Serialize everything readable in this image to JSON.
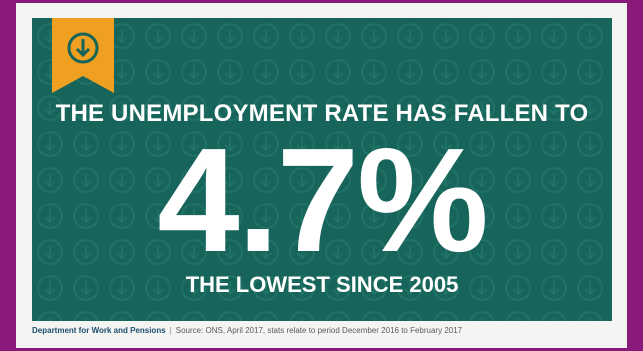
{
  "colors": {
    "background": "#8a1a7a",
    "card": "#17645a",
    "ribbon": "#f0a020",
    "text": "#ffffff",
    "footer_dept": "#1a4f6e"
  },
  "badge": {
    "icon": "arrow-down-circle-icon"
  },
  "headline": "THE UNEMPLOYMENT RATE HAS FALLEN TO",
  "value": "4.7%",
  "subline": "THE LOWEST SINCE 2005",
  "footer": {
    "department": "Department for Work and Pensions",
    "separator": "|",
    "source": "Source: ONS, April 2017, stats relate to period December 2016 to February 2017"
  }
}
